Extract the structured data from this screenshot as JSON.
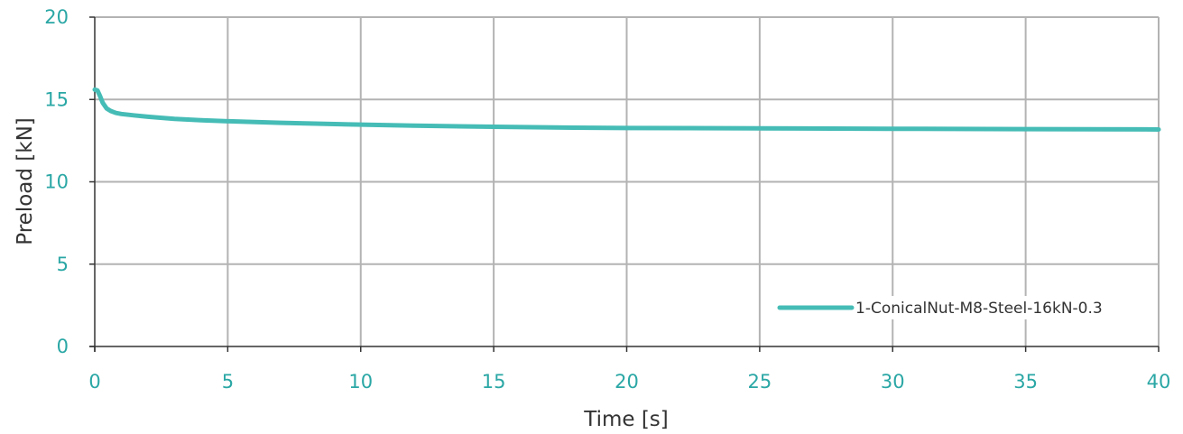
{
  "chart_data": {
    "type": "line",
    "title": "",
    "xlabel": "Time [s]",
    "ylabel": "Preload [kN]",
    "xlim": [
      0,
      40
    ],
    "ylim": [
      0,
      20
    ],
    "x_ticks": [
      0,
      5,
      10,
      15,
      20,
      25,
      30,
      35,
      40
    ],
    "y_ticks": [
      0,
      5,
      10,
      15,
      20
    ],
    "grid": true,
    "legend_position": "bottom-right",
    "tick_label_color": "#2aa7a5",
    "series": [
      {
        "name": "1-ConicalNut-M8-Steel-16kN-0.3",
        "color": "#46bcb6",
        "x": [
          0,
          0.1,
          0.2,
          0.3,
          0.45,
          0.6,
          0.8,
          1.0,
          1.5,
          2,
          3,
          4,
          5,
          7,
          10,
          12,
          15,
          18,
          20,
          25,
          30,
          35,
          40
        ],
        "y": [
          15.6,
          15.55,
          15.2,
          14.8,
          14.45,
          14.3,
          14.18,
          14.12,
          14.03,
          13.95,
          13.82,
          13.74,
          13.68,
          13.58,
          13.47,
          13.41,
          13.34,
          13.29,
          13.27,
          13.25,
          13.22,
          13.2,
          13.18
        ]
      }
    ]
  }
}
